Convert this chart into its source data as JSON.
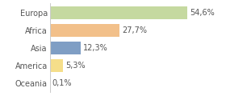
{
  "categories": [
    "Europa",
    "Africa",
    "Asia",
    "America",
    "Oceania"
  ],
  "values": [
    54.6,
    27.7,
    12.3,
    5.3,
    0.1
  ],
  "labels": [
    "54,6%",
    "27,7%",
    "12,3%",
    "5,3%",
    "0,1%"
  ],
  "bar_colors": [
    "#c5d9a0",
    "#f2c08a",
    "#7f9ec4",
    "#f5de8a",
    "#e0e0e0"
  ],
  "background_color": "#ffffff",
  "xlim": [
    0,
    68
  ],
  "bar_height": 0.72,
  "label_fontsize": 7.0,
  "tick_fontsize": 7.0,
  "label_color": "#555555",
  "spine_color": "#cccccc"
}
